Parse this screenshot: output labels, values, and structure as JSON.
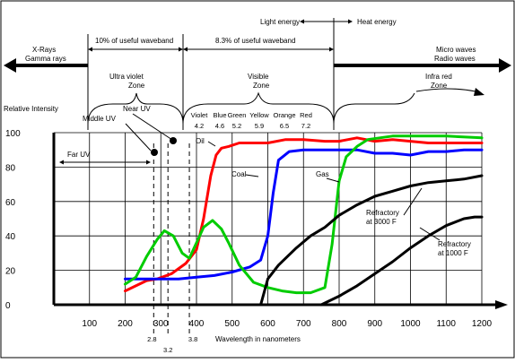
{
  "chart_data": {
    "type": "line",
    "title": "",
    "xlabel": "Wavelength in nanometers",
    "ylabel": "Relative Intensity",
    "x_ticks": [
      100,
      200,
      300,
      400,
      500,
      600,
      700,
      800,
      900,
      1000,
      1100,
      1200
    ],
    "y_ticks": [
      0,
      20,
      40,
      60,
      80,
      100
    ],
    "xlim": [
      0,
      1200
    ],
    "ylim": [
      0,
      100
    ],
    "grid": true,
    "series": [
      {
        "name": "Oil",
        "color": "#ff0000",
        "points": [
          [
            200,
            8
          ],
          [
            230,
            11
          ],
          [
            260,
            14
          ],
          [
            290,
            15
          ],
          [
            330,
            18
          ],
          [
            370,
            24
          ],
          [
            400,
            32
          ],
          [
            420,
            50
          ],
          [
            440,
            75
          ],
          [
            455,
            87
          ],
          [
            470,
            91
          ],
          [
            490,
            92
          ],
          [
            520,
            94
          ],
          [
            560,
            94
          ],
          [
            600,
            94
          ],
          [
            650,
            96
          ],
          [
            700,
            96
          ],
          [
            760,
            95
          ],
          [
            800,
            95
          ],
          [
            850,
            97
          ],
          [
            900,
            95
          ],
          [
            950,
            96
          ],
          [
            1000,
            95
          ],
          [
            1050,
            94
          ],
          [
            1100,
            94
          ],
          [
            1150,
            94
          ],
          [
            1200,
            94
          ]
        ]
      },
      {
        "name": "Coal",
        "color": "#0000ff",
        "points": [
          [
            200,
            15
          ],
          [
            250,
            15
          ],
          [
            300,
            15
          ],
          [
            350,
            15
          ],
          [
            400,
            16
          ],
          [
            450,
            17
          ],
          [
            500,
            19
          ],
          [
            550,
            22
          ],
          [
            580,
            26
          ],
          [
            600,
            40
          ],
          [
            615,
            65
          ],
          [
            630,
            84
          ],
          [
            660,
            89
          ],
          [
            700,
            90
          ],
          [
            740,
            90
          ],
          [
            790,
            90
          ],
          [
            850,
            90
          ],
          [
            900,
            88
          ],
          [
            950,
            88
          ],
          [
            1000,
            87
          ],
          [
            1050,
            89
          ],
          [
            1100,
            89
          ],
          [
            1150,
            90
          ],
          [
            1200,
            90
          ]
        ]
      },
      {
        "name": "Gas",
        "color": "#00cc00",
        "points": [
          [
            200,
            12
          ],
          [
            230,
            16
          ],
          [
            260,
            28
          ],
          [
            290,
            38
          ],
          [
            310,
            43
          ],
          [
            335,
            40
          ],
          [
            360,
            30
          ],
          [
            380,
            27
          ],
          [
            400,
            36
          ],
          [
            420,
            45
          ],
          [
            445,
            49
          ],
          [
            470,
            44
          ],
          [
            490,
            36
          ],
          [
            520,
            23
          ],
          [
            560,
            13
          ],
          [
            600,
            10
          ],
          [
            640,
            8
          ],
          [
            680,
            7
          ],
          [
            720,
            7
          ],
          [
            760,
            10
          ],
          [
            780,
            35
          ],
          [
            800,
            72
          ],
          [
            820,
            86
          ],
          [
            850,
            92
          ],
          [
            880,
            96
          ],
          [
            950,
            98
          ],
          [
            1000,
            98
          ],
          [
            1100,
            98
          ],
          [
            1200,
            97
          ]
        ]
      },
      {
        "name": "Refractory at 3000 F",
        "color": "#000000",
        "points": [
          [
            580,
            0
          ],
          [
            600,
            15
          ],
          [
            630,
            23
          ],
          [
            680,
            33
          ],
          [
            720,
            40
          ],
          [
            760,
            45
          ],
          [
            800,
            52
          ],
          [
            850,
            58
          ],
          [
            900,
            63
          ],
          [
            950,
            66
          ],
          [
            1000,
            69
          ],
          [
            1050,
            71
          ],
          [
            1100,
            72
          ],
          [
            1150,
            73
          ],
          [
            1200,
            75
          ]
        ]
      },
      {
        "name": "Refractory at 1000 F",
        "color": "#000000",
        "points": [
          [
            750,
            0
          ],
          [
            800,
            5
          ],
          [
            850,
            11
          ],
          [
            900,
            18
          ],
          [
            950,
            25
          ],
          [
            1000,
            33
          ],
          [
            1050,
            40
          ],
          [
            1100,
            46
          ],
          [
            1150,
            50
          ],
          [
            1180,
            51
          ],
          [
            1200,
            51
          ]
        ]
      }
    ],
    "markers": [
      {
        "label": "2.8",
        "x": 280
      },
      {
        "label": "3.2",
        "x": 320
      },
      {
        "label": "3.8",
        "x": 380
      }
    ]
  },
  "annotations": {
    "light_energy": "Light energy",
    "heat_energy": "Heat energy",
    "xrays": "X-Rays",
    "gamma": "Gamma rays",
    "micro": "Micro waves",
    "radio": "Radio waves",
    "useful_10": "10% of useful waveband",
    "useful_83": "8.3% of useful waveband",
    "uv_zone_1": "Ultra violet",
    "uv_zone_2": "Zone",
    "vis_zone_1": "Visible",
    "vis_zone_2": "Zone",
    "ir_zone_1": "Infra red",
    "ir_zone_2": "Zone",
    "near_uv": "Near UV",
    "middle_uv": "Middle UV",
    "far_uv": "Far UV",
    "colors": [
      {
        "name": "Violet",
        "value": "4.2"
      },
      {
        "name": "Blue",
        "value": "4.6"
      },
      {
        "name": "Green",
        "value": "5.2"
      },
      {
        "name": "Yellow",
        "value": "5.9"
      },
      {
        "name": "Orange",
        "value": "6.5"
      },
      {
        "name": "Red",
        "value": "7.2"
      }
    ],
    "oil": "Oil",
    "coal": "Coal",
    "gas": "Gas",
    "refr3000_1": "Refractory",
    "refr3000_2": "at 3000 F",
    "refr1000_1": "Refractory",
    "refr1000_2": "at 1000 F"
  }
}
